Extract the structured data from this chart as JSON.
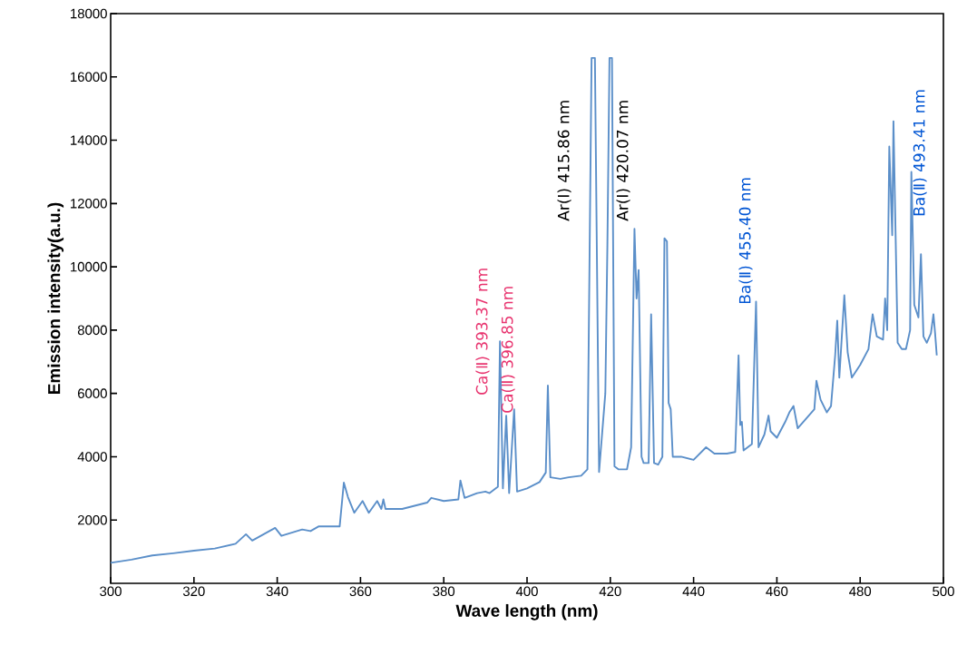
{
  "chart_data": {
    "type": "line",
    "xlabel": "Wave length (nm)",
    "ylabel": "Emission intensity(a.u.)",
    "xlim": [
      300,
      500
    ],
    "ylim": [
      0,
      18000
    ],
    "xticks": [
      300,
      320,
      340,
      360,
      380,
      400,
      420,
      440,
      460,
      480,
      500
    ],
    "yticks": [
      2000,
      4000,
      6000,
      8000,
      10000,
      12000,
      14000,
      16000,
      18000
    ],
    "grid": false,
    "series": [
      {
        "color": "#5b8fc9",
        "x": [
          300,
          305,
          310,
          315,
          320,
          325,
          330,
          332.5,
          334,
          339.5,
          341,
          346,
          348,
          350,
          355,
          356,
          357,
          358.5,
          360.5,
          362,
          364,
          365,
          365.5,
          366,
          370,
          376,
          377,
          380,
          383.5,
          384,
          385,
          388,
          390,
          391,
          393,
          393.5,
          394.2,
          395,
          395.7,
          396.9,
          397.6,
          400,
          403,
          404.5,
          405,
          405.6,
          408,
          410,
          413,
          414.5,
          415.5,
          416.3,
          417.3,
          418.8,
          419.3,
          419.8,
          420.4,
          421,
          422,
          424,
          425,
          425.8,
          426.3,
          426.8,
          427.5,
          428,
          429.2,
          429.8,
          430.5,
          431.5,
          432.5,
          433,
          433.6,
          434,
          434.5,
          435,
          437,
          440,
          443,
          445,
          448,
          450,
          450.8,
          451.2,
          451.6,
          452,
          454,
          455,
          455.6,
          457,
          458,
          458.5,
          460,
          462,
          463,
          464,
          465,
          467,
          469,
          469.5,
          470.5,
          472,
          473,
          474,
          474.5,
          475,
          476.2,
          477,
          478,
          480,
          482,
          483,
          484,
          485.5,
          486,
          486.5,
          487,
          487.7,
          488,
          489,
          490,
          491,
          492,
          492.3,
          493,
          494,
          494.6,
          495.2,
          496,
          497,
          497.6,
          498,
          498.4
        ],
        "values": [
          650,
          750,
          880,
          950,
          1030,
          1100,
          1250,
          1550,
          1350,
          1750,
          1500,
          1700,
          1650,
          1800,
          1800,
          3180,
          2720,
          2230,
          2600,
          2230,
          2600,
          2350,
          2650,
          2350,
          2350,
          2550,
          2700,
          2600,
          2650,
          3250,
          2700,
          2850,
          2900,
          2850,
          3050,
          7650,
          3000,
          5300,
          2850,
          5500,
          2900,
          3000,
          3200,
          3500,
          6250,
          3350,
          3300,
          3350,
          3400,
          3600,
          16600,
          16600,
          3520,
          6000,
          10700,
          16600,
          16600,
          3700,
          3600,
          3600,
          4300,
          11200,
          9000,
          9900,
          4000,
          3800,
          3800,
          8500,
          3800,
          3750,
          4000,
          10900,
          10800,
          5700,
          5500,
          4000,
          4000,
          3900,
          4300,
          4100,
          4100,
          4150,
          7200,
          5000,
          5100,
          4200,
          4400,
          8900,
          4300,
          4700,
          5300,
          4800,
          4600,
          5100,
          5400,
          5600,
          4900,
          5200,
          5500,
          6400,
          5800,
          5400,
          5600,
          7200,
          8300,
          6500,
          9100,
          7300,
          6500,
          6900,
          7400,
          8500,
          7800,
          7700,
          9000,
          8000,
          13800,
          11000,
          14600,
          7600,
          7400,
          7400,
          8000,
          13000,
          8800,
          8400,
          10400,
          7800,
          7600,
          7900,
          8500,
          7900,
          7200
        ]
      }
    ],
    "annotations": [
      "Ca(Ⅱ) 393.37 nm",
      "Ca(Ⅱ) 396.85 nm",
      "Ar(Ⅰ) 415.86 nm",
      "Ar(Ⅰ) 420.07 nm",
      "Ba(Ⅱ) 455.40 nm",
      "Ba(Ⅱ) 493.41 nm"
    ]
  }
}
